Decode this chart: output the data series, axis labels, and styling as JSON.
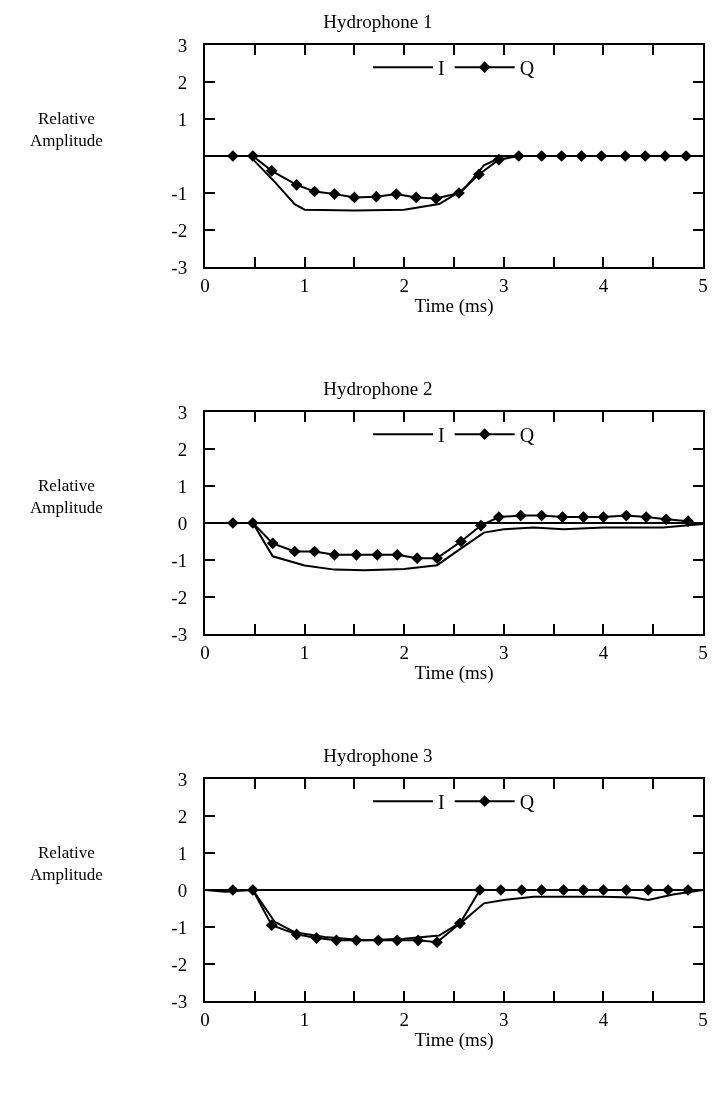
{
  "chart_data": [
    {
      "type": "line",
      "title": "Hydrophone 1",
      "xlabel": "Time (ms)",
      "ylabel": "Relative\nAmplitude",
      "xlim": [
        0,
        5
      ],
      "ylim": [
        -3,
        3
      ],
      "xticks": [
        0,
        {
          "value": 0.5,
          "label": null
        },
        1,
        {
          "value": 1.5,
          "label": null
        },
        2,
        {
          "value": 2.5,
          "label": null
        },
        3,
        {
          "value": 3.5,
          "label": null
        },
        4,
        {
          "value": 4.5,
          "label": null
        },
        5
      ],
      "yticks": [
        -3,
        -2,
        -1,
        {
          "value": 0,
          "label": null
        },
        1,
        2,
        3
      ],
      "legend": "top",
      "grid": false,
      "line_style": "solid",
      "ref_lines": [
        {
          "axis": "y",
          "value": 0,
          "color": "#000000"
        }
      ],
      "series": [
        {
          "name": "I",
          "color": "#000000",
          "marker": "none",
          "x": [
            0,
            0.45,
            0.7,
            0.9,
            1.0,
            1.5,
            2.0,
            2.35,
            2.6,
            2.8,
            3.0,
            3.5,
            4.0,
            4.5,
            5.0
          ],
          "values": [
            0,
            0,
            -0.7,
            -1.3,
            -1.45,
            -1.47,
            -1.45,
            -1.3,
            -0.9,
            -0.25,
            0,
            0,
            0,
            0,
            0
          ]
        },
        {
          "name": "Q",
          "color": "#000000",
          "marker": "diamond",
          "x": [
            0.28,
            0.48,
            0.67,
            0.92,
            1.1,
            1.3,
            1.5,
            1.72,
            1.92,
            2.12,
            2.32,
            2.55,
            2.75,
            2.95,
            3.15,
            3.38,
            3.58,
            3.78,
            3.98,
            4.22,
            4.42,
            4.62,
            4.83
          ],
          "values": [
            0,
            0,
            -0.4,
            -0.78,
            -0.96,
            -1.03,
            -1.12,
            -1.1,
            -1.03,
            -1.12,
            -1.15,
            -1.0,
            -0.5,
            -0.1,
            0,
            0,
            0,
            0,
            0,
            0,
            0,
            0,
            0
          ]
        }
      ]
    },
    {
      "type": "line",
      "title": "Hydrophone 2",
      "xlabel": "Time (ms)",
      "ylabel": "Relative\nAmplitude",
      "xlim": [
        0,
        5
      ],
      "ylim": [
        -3,
        3
      ],
      "xticks": [
        0,
        {
          "value": 0.5,
          "label": null
        },
        1,
        {
          "value": 1.5,
          "label": null
        },
        2,
        {
          "value": 2.5,
          "label": null
        },
        3,
        {
          "value": 3.5,
          "label": null
        },
        4,
        {
          "value": 4.5,
          "label": null
        },
        5
      ],
      "yticks": [
        -3,
        -2,
        -1,
        0,
        1,
        2,
        3
      ],
      "legend": "top",
      "grid": false,
      "line_style": "solid",
      "ref_lines": [
        {
          "axis": "y",
          "value": 0,
          "color": "#000000"
        }
      ],
      "series": [
        {
          "name": "I",
          "color": "#000000",
          "marker": "none",
          "x": [
            0,
            0.48,
            0.68,
            1.0,
            1.3,
            1.6,
            2.0,
            2.33,
            2.6,
            2.8,
            3.0,
            3.3,
            3.6,
            4.0,
            4.3,
            4.6,
            5.0
          ],
          "values": [
            0,
            0,
            -0.9,
            -1.15,
            -1.26,
            -1.28,
            -1.24,
            -1.14,
            -0.63,
            -0.26,
            -0.17,
            -0.12,
            -0.17,
            -0.12,
            -0.12,
            -0.12,
            -0.03
          ]
        },
        {
          "name": "Q",
          "color": "#000000",
          "marker": "diamond",
          "x": [
            0.28,
            0.48,
            0.68,
            0.9,
            1.1,
            1.3,
            1.52,
            1.73,
            1.93,
            2.13,
            2.33,
            2.57,
            2.77,
            2.95,
            3.17,
            3.38,
            3.59,
            3.8,
            4.0,
            4.23,
            4.43,
            4.63,
            4.85
          ],
          "values": [
            0,
            0,
            -0.55,
            -0.77,
            -0.77,
            -0.86,
            -0.86,
            -0.86,
            -0.86,
            -0.95,
            -0.95,
            -0.5,
            -0.07,
            0.16,
            0.2,
            0.2,
            0.16,
            0.16,
            0.16,
            0.2,
            0.16,
            0.1,
            0.05
          ]
        }
      ]
    },
    {
      "type": "line",
      "title": "Hydrophone 3",
      "xlabel": "Time (ms)",
      "ylabel": "Relative\nAmplitude",
      "xlim": [
        0,
        5
      ],
      "ylim": [
        -3,
        3
      ],
      "xticks": [
        0,
        {
          "value": 0.5,
          "label": null
        },
        1,
        {
          "value": 1.5,
          "label": null
        },
        2,
        {
          "value": 2.5,
          "label": null
        },
        3,
        {
          "value": 3.5,
          "label": null
        },
        4,
        {
          "value": 4.5,
          "label": null
        },
        5
      ],
      "yticks": [
        -3,
        -2,
        -1,
        0,
        1,
        2,
        3
      ],
      "legend": "top",
      "grid": false,
      "line_style": "solid",
      "ref_lines": [
        {
          "axis": "y",
          "value": 0,
          "color": "#000000"
        }
      ],
      "series": [
        {
          "name": "I",
          "color": "#000000",
          "marker": "none",
          "x": [
            0,
            0.2,
            0.48,
            0.7,
            0.9,
            1.2,
            1.6,
            2.0,
            2.35,
            2.6,
            2.8,
            3.0,
            3.3,
            4.0,
            4.3,
            4.45,
            4.7,
            5.0
          ],
          "values": [
            0,
            -0.05,
            0,
            -0.86,
            -1.14,
            -1.27,
            -1.36,
            -1.32,
            -1.23,
            -0.82,
            -0.36,
            -0.27,
            -0.18,
            -0.18,
            -0.2,
            -0.27,
            -0.12,
            0
          ]
        },
        {
          "name": "Q",
          "color": "#000000",
          "marker": "diamond",
          "x": [
            0.28,
            0.48,
            0.67,
            0.92,
            1.12,
            1.32,
            1.52,
            1.74,
            1.93,
            2.14,
            2.33,
            2.56,
            2.76,
            2.97,
            3.18,
            3.38,
            3.6,
            3.8,
            4.0,
            4.23,
            4.45,
            4.65,
            4.85
          ],
          "values": [
            0,
            0,
            -0.95,
            -1.2,
            -1.3,
            -1.36,
            -1.36,
            -1.36,
            -1.36,
            -1.36,
            -1.41,
            -0.9,
            0,
            0,
            0,
            0,
            0,
            0,
            0,
            0,
            0,
            0,
            0
          ]
        }
      ]
    }
  ]
}
